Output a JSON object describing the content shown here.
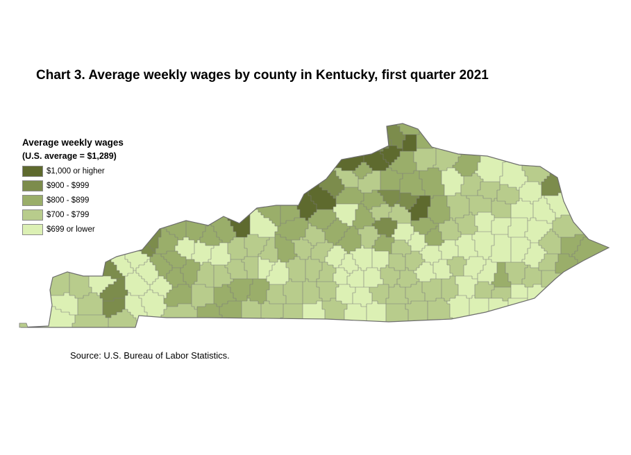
{
  "title": "Chart 3. Average weekly wages by county in Kentucky, first quarter 2021",
  "legend": {
    "title": "Average weekly wages",
    "subtitle": "(U.S. average = $1,289)",
    "classes": [
      {
        "label": "$1,000 or higher",
        "color": "#5e6a2e"
      },
      {
        "label": "$900 - $999",
        "color": "#7c8c4c"
      },
      {
        "label": "$800 - $899",
        "color": "#9aae6a"
      },
      {
        "label": "$700 - $799",
        "color": "#b8cc8c"
      },
      {
        "label": "$699 or lower",
        "color": "#dcf0b4"
      }
    ]
  },
  "source": "Source: U.S. Bureau of Labor Statistics.",
  "map": {
    "state": "Kentucky",
    "county_border_color": "#7a7a7a"
  }
}
